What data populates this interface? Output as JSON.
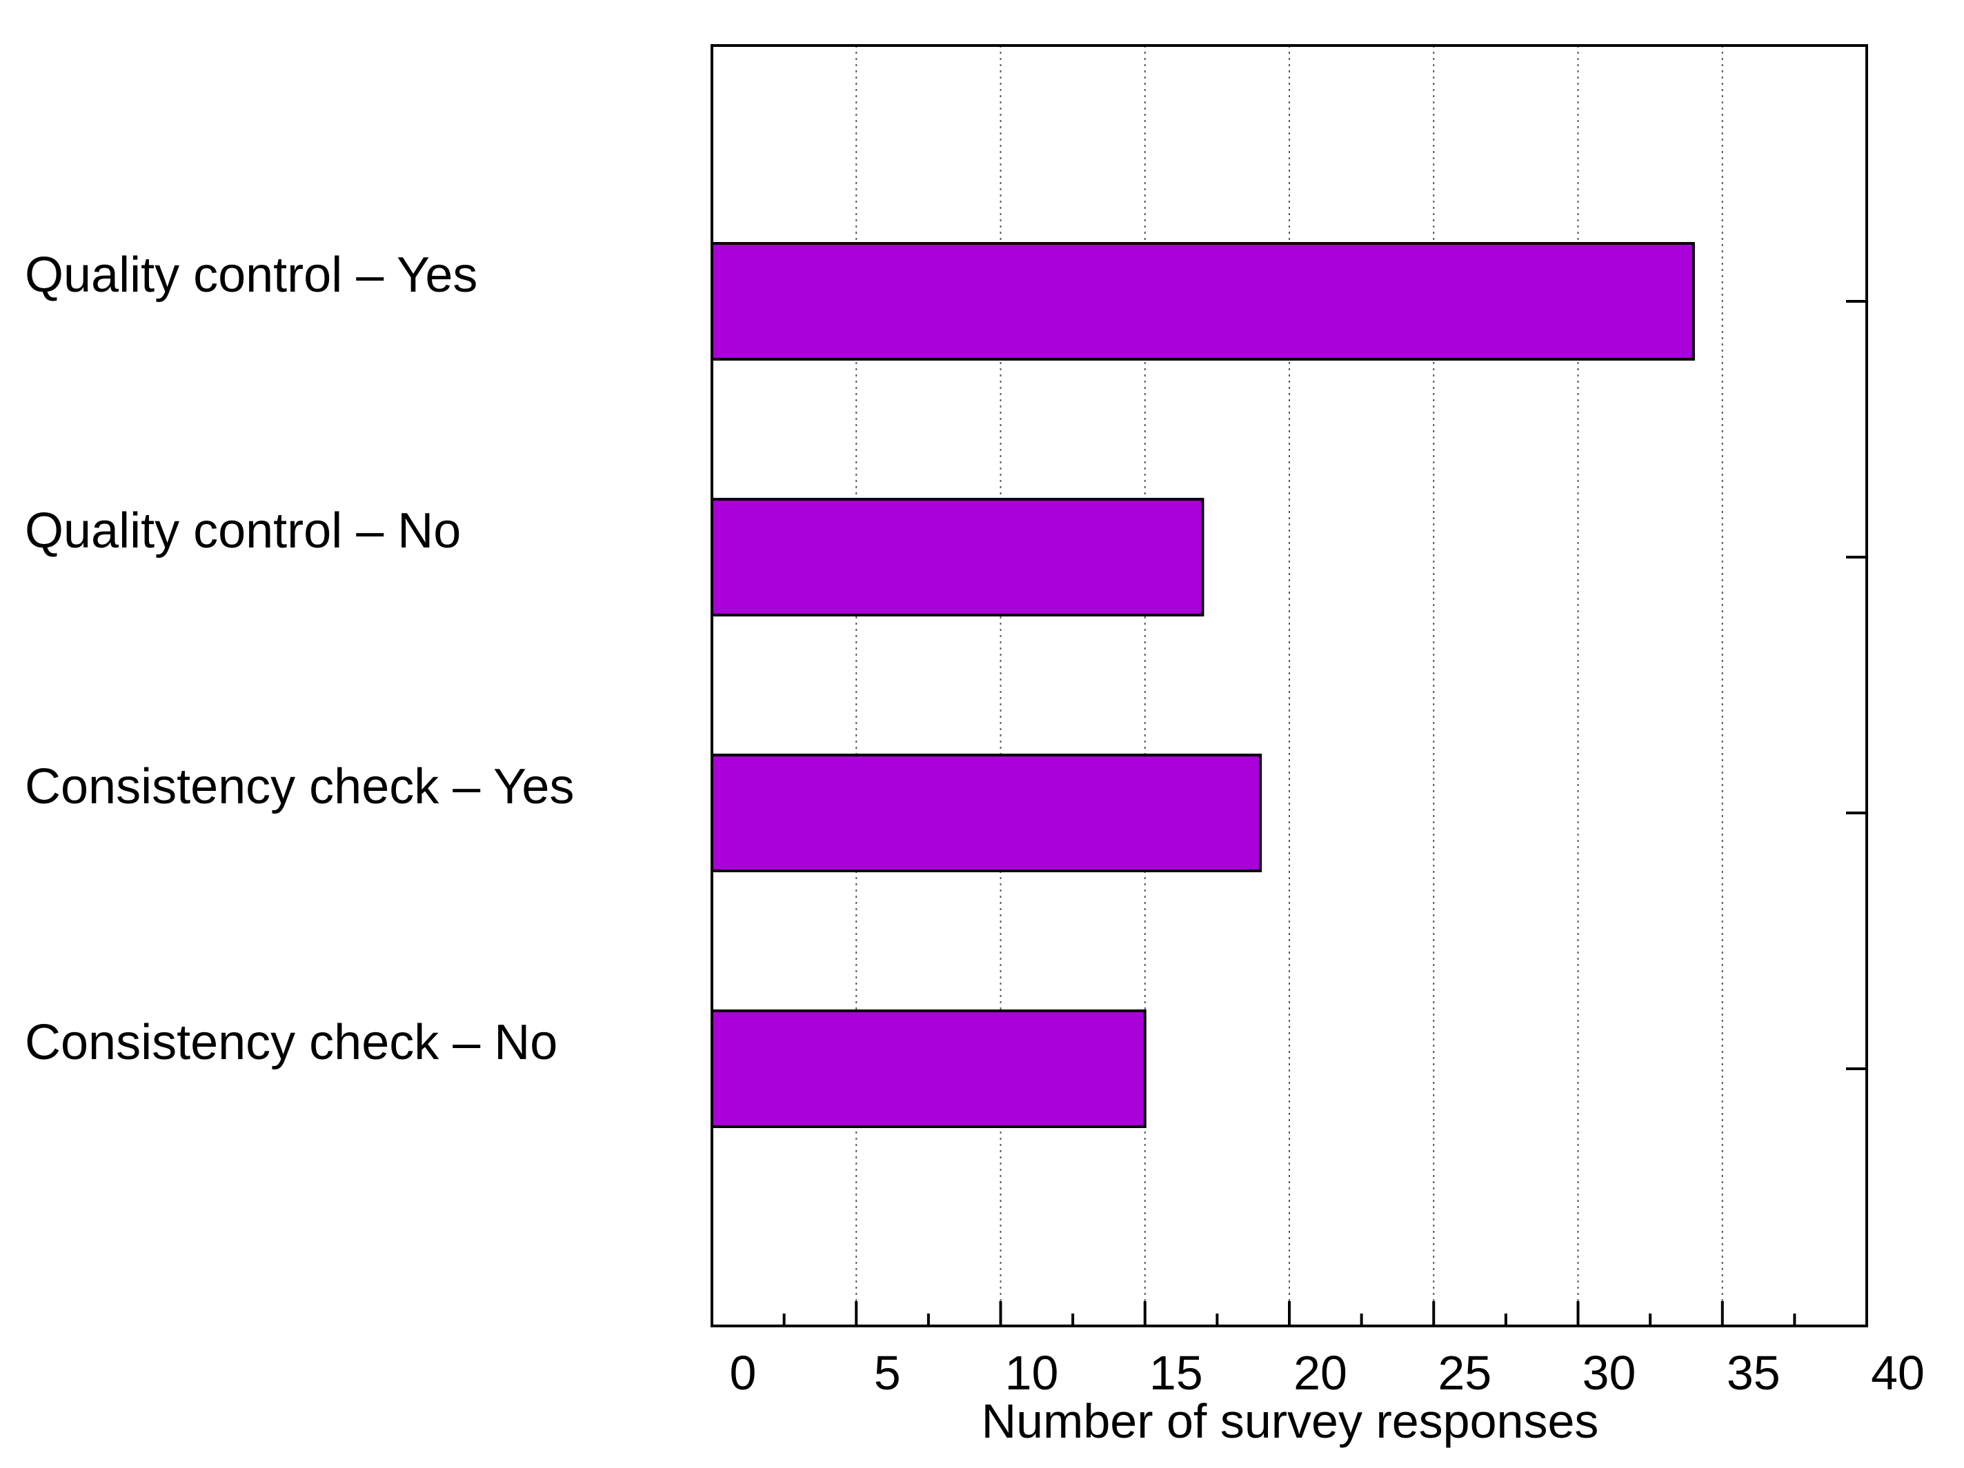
{
  "chart_data": {
    "type": "bar",
    "orientation": "horizontal",
    "categories": [
      "Quality control – Yes",
      "Quality control – No",
      "Consistency check – Yes",
      "Consistency check – No"
    ],
    "values": [
      34,
      17,
      19,
      15
    ],
    "title": "",
    "xlabel": "Number of survey responses",
    "ylabel": "",
    "xlim": [
      0,
      40
    ],
    "xticks": [
      0,
      5,
      10,
      15,
      20,
      25,
      30,
      35,
      40
    ],
    "grid": "vertical dotted",
    "bar_color": "#aa00d9",
    "bar_edge_color": "#000000"
  }
}
